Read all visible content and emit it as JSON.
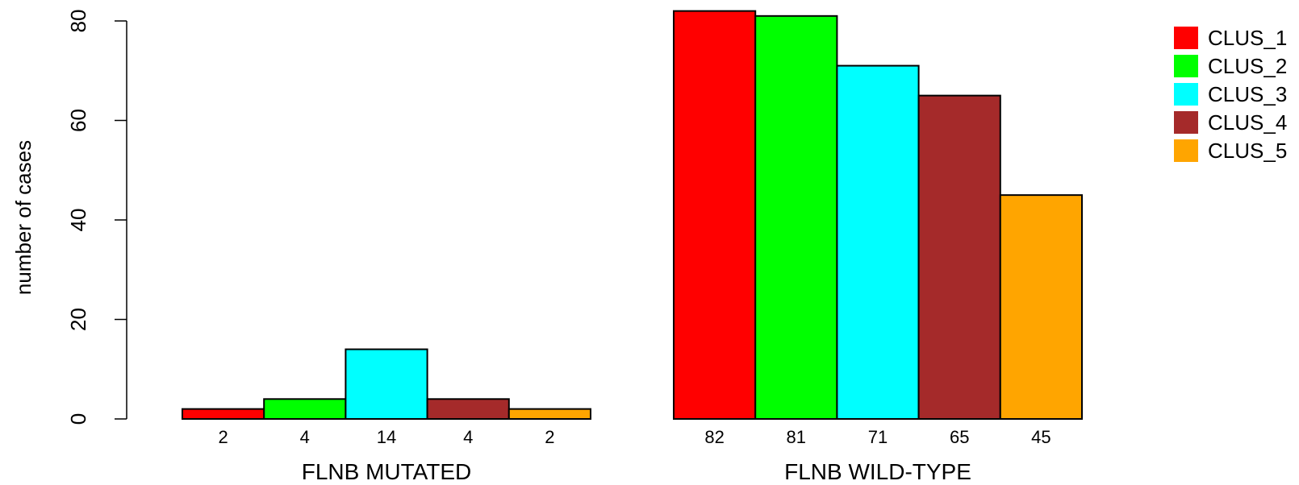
{
  "chart_data": {
    "type": "bar",
    "ylabel": "number of cases",
    "ylim": [
      0,
      80
    ],
    "yticks": [
      0,
      20,
      40,
      60,
      80
    ],
    "groups": [
      {
        "name": "FLNB MUTATED",
        "values": [
          2,
          4,
          14,
          4,
          2
        ],
        "labels": [
          "2",
          "4",
          "14",
          "4",
          "2"
        ]
      },
      {
        "name": "FLNB WILD-TYPE",
        "values": [
          82,
          81,
          71,
          65,
          45
        ],
        "labels": [
          "82",
          "81",
          "71",
          "65",
          "45"
        ]
      }
    ],
    "series": [
      {
        "name": "CLUS_1",
        "color": "#ff0000"
      },
      {
        "name": "CLUS_2",
        "color": "#00ff00"
      },
      {
        "name": "CLUS_3",
        "color": "#00ffff"
      },
      {
        "name": "CLUS_4",
        "color": "#a52a2a"
      },
      {
        "name": "CLUS_5",
        "color": "#ffa500"
      }
    ],
    "legend_position": "top-right"
  }
}
